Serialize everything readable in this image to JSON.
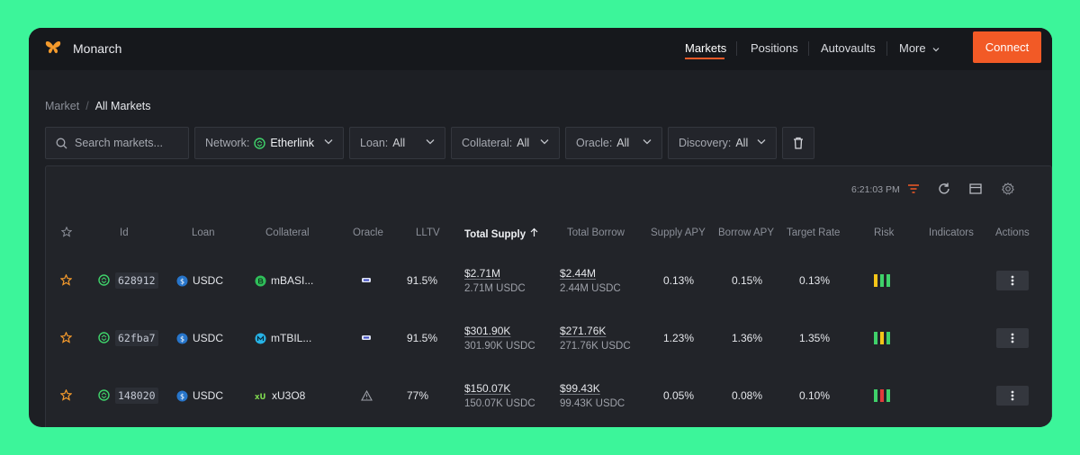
{
  "header": {
    "brand": "Monarch",
    "nav": [
      "Markets",
      "Positions",
      "Autovaults",
      "More"
    ],
    "connect_label": "Connect"
  },
  "breadcrumb": {
    "parent": "Market",
    "separator": "/",
    "current": "All Markets"
  },
  "filters": {
    "search_placeholder": "Search markets...",
    "network_label": "Network:",
    "network_value": "Etherlink",
    "loan_label": "Loan:",
    "loan_value": "All",
    "collateral_label": "Collateral:",
    "collateral_value": "All",
    "oracle_label": "Oracle:",
    "oracle_value": "All",
    "discovery_label": "Discovery:",
    "discovery_value": "All"
  },
  "toolbar": {
    "time": "6:21:03 PM"
  },
  "columns": [
    "Id",
    "Loan",
    "Collateral",
    "Oracle",
    "LLTV",
    "Total Supply",
    "Total Borrow",
    "Supply APY",
    "Borrow APY",
    "Target Rate",
    "Risk",
    "Indicators",
    "Actions"
  ],
  "sort_column": "Total Supply",
  "rows": [
    {
      "id": "628912",
      "loan": "USDC",
      "collateral": "mBASI...",
      "oracle_icon": "chain-icon",
      "lltv": "91.5%",
      "supply_usd": "$2.71M",
      "supply_tok": "2.71M USDC",
      "borrow_usd": "$2.44M",
      "borrow_tok": "2.44M USDC",
      "supply_apy": "0.13%",
      "borrow_apy": "0.15%",
      "target_rate": "0.13%",
      "risk": [
        "#f5c518",
        "#3fd16a",
        "#3fd16a"
      ]
    },
    {
      "id": "62fba7",
      "loan": "USDC",
      "collateral": "mTBIL...",
      "oracle_icon": "chain-icon",
      "lltv": "91.5%",
      "supply_usd": "$301.90K",
      "supply_tok": "301.90K USDC",
      "borrow_usd": "$271.76K",
      "borrow_tok": "271.76K USDC",
      "supply_apy": "1.23%",
      "borrow_apy": "1.36%",
      "target_rate": "1.35%",
      "risk": [
        "#3fd16a",
        "#f5c518",
        "#3fd16a"
      ]
    },
    {
      "id": "148020",
      "loan": "USDC",
      "collateral": "xU3O8",
      "oracle_icon": "warning-icon",
      "lltv": "77%",
      "supply_usd": "$150.07K",
      "supply_tok": "150.07K USDC",
      "borrow_usd": "$99.43K",
      "borrow_tok": "99.43K USDC",
      "supply_apy": "0.05%",
      "borrow_apy": "0.08%",
      "target_rate": "0.10%",
      "risk": [
        "#3fd16a",
        "#e23b3b",
        "#3fd16a"
      ]
    }
  ],
  "colors": {
    "accent": "#f25a26",
    "brand_bg": "#3cf59a",
    "green": "#3fd16a"
  }
}
